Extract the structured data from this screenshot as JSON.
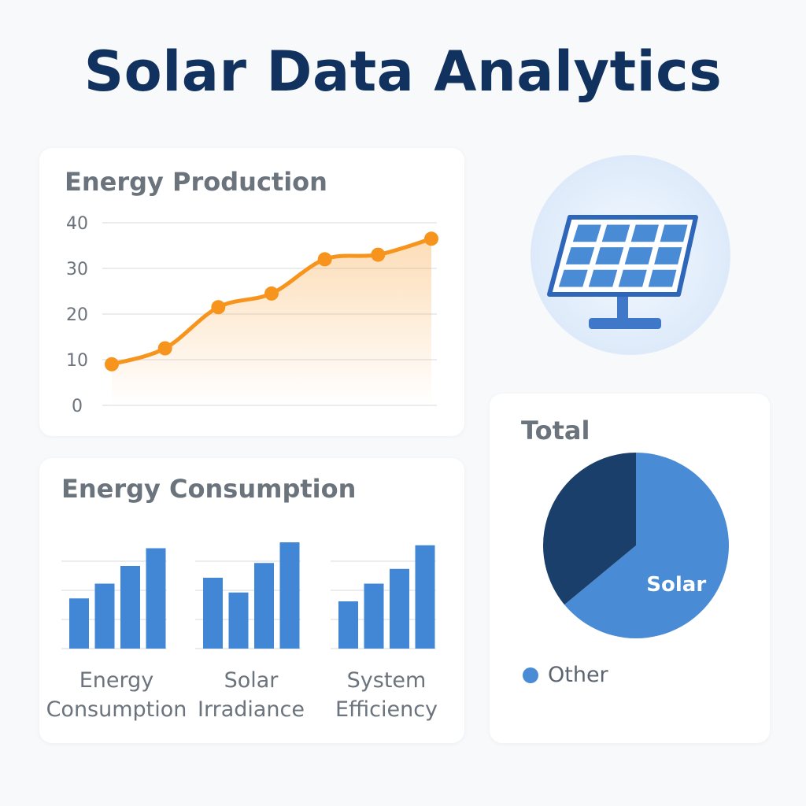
{
  "page": {
    "title": "Solar Data Analytics"
  },
  "colors": {
    "title": "#11325f",
    "line": "#f7941d",
    "bar": "#4287d6",
    "pie_solar": "#4a8bd6",
    "pie_other": "#1a3f6b"
  },
  "icons": {
    "hero": "solar-panel-icon"
  },
  "chart_data": [
    {
      "type": "line",
      "title": "Energy Production",
      "x": [
        1,
        2,
        3,
        4,
        5,
        6,
        7
      ],
      "values": [
        9,
        12.5,
        21.5,
        24.5,
        32,
        33,
        36.5
      ],
      "yticks": [
        0,
        10,
        20,
        30,
        40
      ],
      "ylim": [
        0,
        40
      ],
      "grid": true,
      "area_fill": true
    },
    {
      "type": "bar",
      "title": "Energy Consumption",
      "groups": [
        {
          "label": "Energy Consumption",
          "values": [
            17,
            22,
            28,
            34
          ]
        },
        {
          "label": "Solar Irradiance",
          "values": [
            24,
            19,
            29,
            36
          ]
        },
        {
          "label": "System Efficiency",
          "values": [
            16,
            22,
            27,
            35
          ]
        }
      ],
      "ylim": [
        0,
        40
      ],
      "grid": true
    },
    {
      "type": "pie",
      "title": "Total",
      "slices": [
        {
          "label": "Solar",
          "value": 64
        },
        {
          "label": "Other",
          "value": 36
        }
      ],
      "legend": [
        "Other"
      ]
    }
  ]
}
